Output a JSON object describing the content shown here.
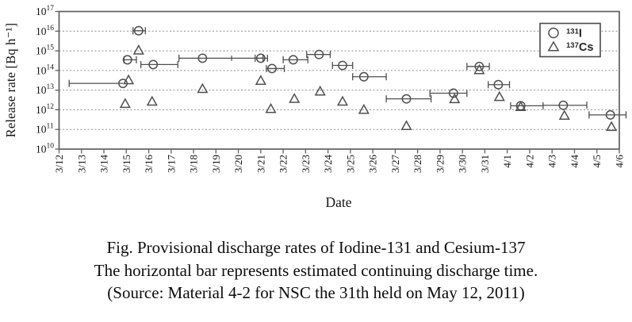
{
  "figure": {
    "caption_line1": "Fig. Provisional discharge rates of Iodine-131 and Cesium-137",
    "caption_line2": "The horizontal bar represents estimated continuing discharge time.",
    "caption_line3": "(Source: Material 4-2 for NSC the 31th held on May 12, 2011)"
  },
  "colors": {
    "marker": "#4f4f4f",
    "error_bar": "#4f4f4f",
    "gridline": "#8c8c8c",
    "plot_border": "#606060",
    "text": "#141414",
    "background": "#ffffff"
  },
  "chart_data": {
    "type": "scatter",
    "title": "",
    "xlabel": "Date",
    "ylabel": "Release rate [Bq h⁻¹]",
    "grid": "horizontal-dashed",
    "legend_position": "top-right",
    "y_axis": {
      "scale": "log10",
      "min_exp": 10,
      "max_exp": 17,
      "tick_exps": [
        10,
        11,
        12,
        13,
        14,
        15,
        16,
        17
      ],
      "gridline_exps": [
        11,
        12,
        13,
        14,
        15,
        16
      ]
    },
    "x_tick_labels": [
      "3/12",
      "3/13",
      "3/14",
      "3/15",
      "3/16",
      "3/17",
      "3/18",
      "3/19",
      "3/20",
      "3/21",
      "3/22",
      "3/23",
      "3/24",
      "3/25",
      "3/26",
      "3/27",
      "3/28",
      "3/29",
      "3/30",
      "3/31",
      "4/1",
      "4/2",
      "4/3",
      "4/4",
      "4/5",
      "4/6"
    ],
    "legend": {
      "entries": [
        {
          "marker": "circle",
          "label_sup": "131",
          "label_base": "I"
        },
        {
          "marker": "triangle",
          "label_sup": "137",
          "label_base": "Cs"
        }
      ]
    },
    "series": [
      {
        "id": "i131",
        "label_sup": "131",
        "label_base": "I",
        "marker": "circle",
        "points": [
          {
            "x": 3.55,
            "y": 1.05e+16,
            "bar": [
              3.3,
              3.85
            ]
          },
          {
            "x": 3.05,
            "y": 350000000000000.0,
            "bar": [
              2.9,
              3.45
            ]
          },
          {
            "x": 4.2,
            "y": 200000000000000.0,
            "bar": [
              3.65,
              5.3
            ]
          },
          {
            "x": 6.4,
            "y": 420000000000000.0,
            "bar": [
              5.35,
              9.1
            ],
            "mid": [
              7.7
            ]
          },
          {
            "x": 2.85,
            "y": 22000000000000.0,
            "bar": [
              0.45,
              2.85
            ],
            "caps": [
              true,
              false
            ]
          },
          {
            "x": 9.0,
            "y": 420000000000000.0,
            "bar": [
              8.75,
              9.3
            ]
          },
          {
            "x": 9.5,
            "y": 125000000000000.0,
            "bar": [
              9.25,
              10.05
            ]
          },
          {
            "x": 10.45,
            "y": 350000000000000.0,
            "bar": [
              10.0,
              11.1
            ]
          },
          {
            "x": 11.6,
            "y": 650000000000000.0,
            "bar": [
              11.05,
              12.1
            ]
          },
          {
            "x": 12.65,
            "y": 180000000000000.0,
            "bar": [
              12.2,
              13.1
            ]
          },
          {
            "x": 13.6,
            "y": 48000000000000.0,
            "bar": [
              13.1,
              14.6
            ]
          },
          {
            "x": 15.5,
            "y": 3600000000000.0,
            "bar": [
              14.6,
              16.6
            ]
          },
          {
            "x": 17.6,
            "y": 7000000000000.0,
            "bar": [
              16.55,
              18.2
            ]
          },
          {
            "x": 18.75,
            "y": 160000000000000.0,
            "bar": [
              18.2,
              19.2
            ]
          },
          {
            "x": 19.6,
            "y": 19000000000000.0,
            "bar": [
              19.15,
              20.1
            ]
          },
          {
            "x": 20.6,
            "y": 1600000000000.0,
            "bar": [
              20.15,
              21.6
            ]
          },
          {
            "x": 22.5,
            "y": 1700000000000.0,
            "bar": [
              21.6,
              23.55
            ],
            "caps": [
              false,
              true
            ]
          },
          {
            "x": 24.6,
            "y": 550000000000.0,
            "bar": [
              23.65,
              25.3
            ]
          }
        ]
      },
      {
        "id": "cs137",
        "label_sup": "137",
        "label_base": "Cs",
        "marker": "triangle",
        "points": [
          {
            "x": 3.55,
            "y": 1050000000000000.0
          },
          {
            "x": 3.1,
            "y": 32000000000000.0
          },
          {
            "x": 2.95,
            "y": 2000000000000.0
          },
          {
            "x": 4.15,
            "y": 2600000000000.0
          },
          {
            "x": 6.4,
            "y": 11500000000000.0
          },
          {
            "x": 9.0,
            "y": 30000000000000.0
          },
          {
            "x": 9.45,
            "y": 1100000000000.0
          },
          {
            "x": 10.5,
            "y": 3600000000000.0
          },
          {
            "x": 11.65,
            "y": 8500000000000.0
          },
          {
            "x": 12.65,
            "y": 2600000000000.0
          },
          {
            "x": 13.6,
            "y": 1000000000000.0
          },
          {
            "x": 15.5,
            "y": 150000000000.0
          },
          {
            "x": 17.65,
            "y": 3500000000000.0
          },
          {
            "x": 18.75,
            "y": 105000000000000.0
          },
          {
            "x": 19.65,
            "y": 4500000000000.0
          },
          {
            "x": 20.6,
            "y": 1400000000000.0
          },
          {
            "x": 22.55,
            "y": 500000000000.0
          },
          {
            "x": 24.65,
            "y": 135000000000.0
          }
        ]
      }
    ]
  }
}
